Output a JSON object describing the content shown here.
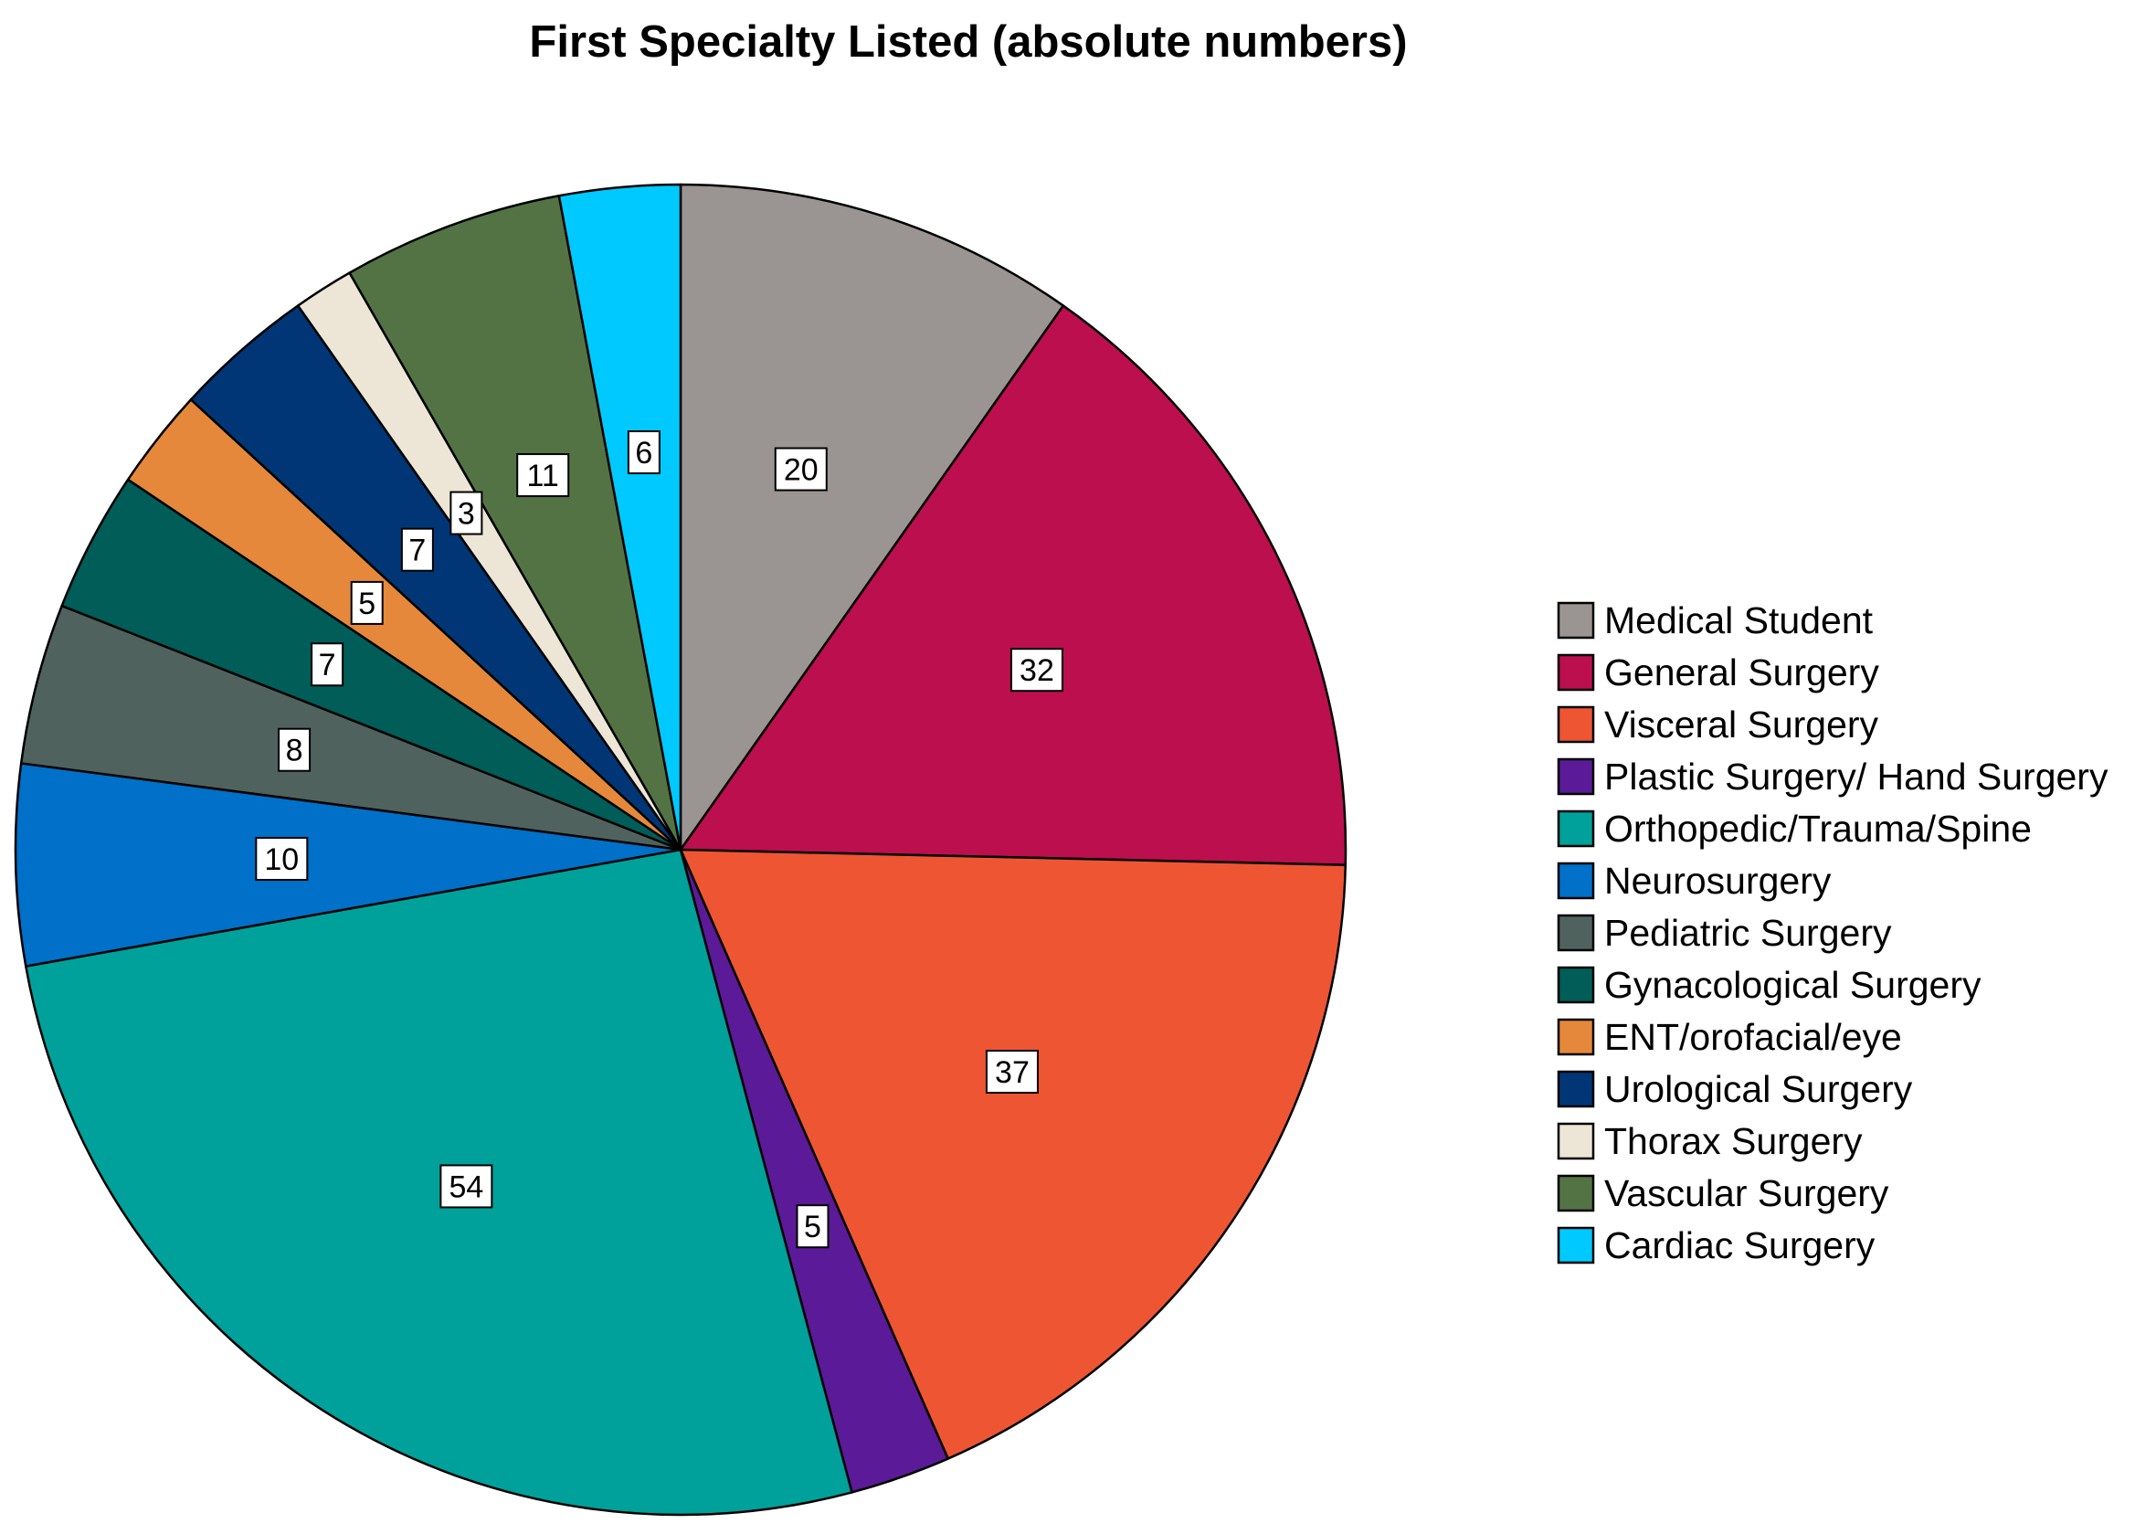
{
  "chart_data": {
    "type": "pie",
    "title": "First Specialty Listed (absolute numbers)",
    "categories": [
      "Medical Student",
      "General Surgery",
      "Visceral Surgery",
      "Plastic Surgery/ Hand Surgery",
      "Orthopedic/Trauma/Spine",
      "Neurosurgery",
      "Pediatric Surgery",
      "Gynacological Surgery",
      "ENT/orofacial/eye",
      "Urological Surgery",
      "Thorax Surgery",
      "Vascular Surgery",
      "Cardiac Surgery"
    ],
    "values": [
      20,
      32,
      37,
      5,
      54,
      10,
      8,
      7,
      5,
      7,
      3,
      11,
      6
    ],
    "colors": [
      "#9a9493",
      "#bb0f4e",
      "#ee5533",
      "#5b1a97",
      "#00a19a",
      "#0070c8",
      "#50625e",
      "#005d58",
      "#e5883b",
      "#013676",
      "#ede6d6",
      "#537345",
      "#00c9ff"
    ],
    "start_angle": "12 o'clock",
    "direction": "clockwise",
    "legend_position": "right",
    "data_labels": true
  }
}
